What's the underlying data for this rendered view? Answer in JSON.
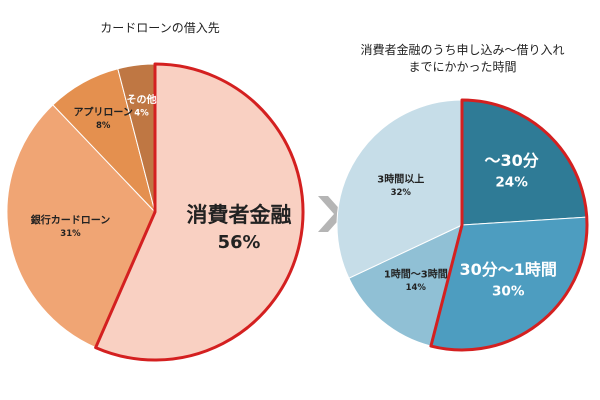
{
  "chart_data": [
    {
      "type": "pie",
      "title": "カードローンの借入先",
      "categories": [
        "消費者金融",
        "銀行カードローン",
        "アプリローン",
        "その他"
      ],
      "values": [
        56,
        31,
        8,
        4
      ],
      "value_labels": [
        "56%",
        "31%",
        "8%",
        "4%"
      ],
      "colors": [
        "#f9d0c2",
        "#f0a574",
        "#e4904f",
        "#bf7743"
      ],
      "highlight": [
        0
      ],
      "highlight_color": "#d42020"
    },
    {
      "type": "pie",
      "title": "消費者金融のうち申し込み～借り入れまでにかかった時間",
      "categories": [
        "～30分",
        "30分～1時間",
        "1時間～3時間",
        "3時間以上"
      ],
      "values": [
        24,
        30,
        14,
        32
      ],
      "value_labels": [
        "24%",
        "30%",
        "14%",
        "32%"
      ],
      "colors": [
        "#2f7b96",
        "#4d9dc0",
        "#90c0d5",
        "#c6dde8"
      ],
      "highlight": [
        0,
        1
      ],
      "highlight_color": "#d42020"
    }
  ]
}
